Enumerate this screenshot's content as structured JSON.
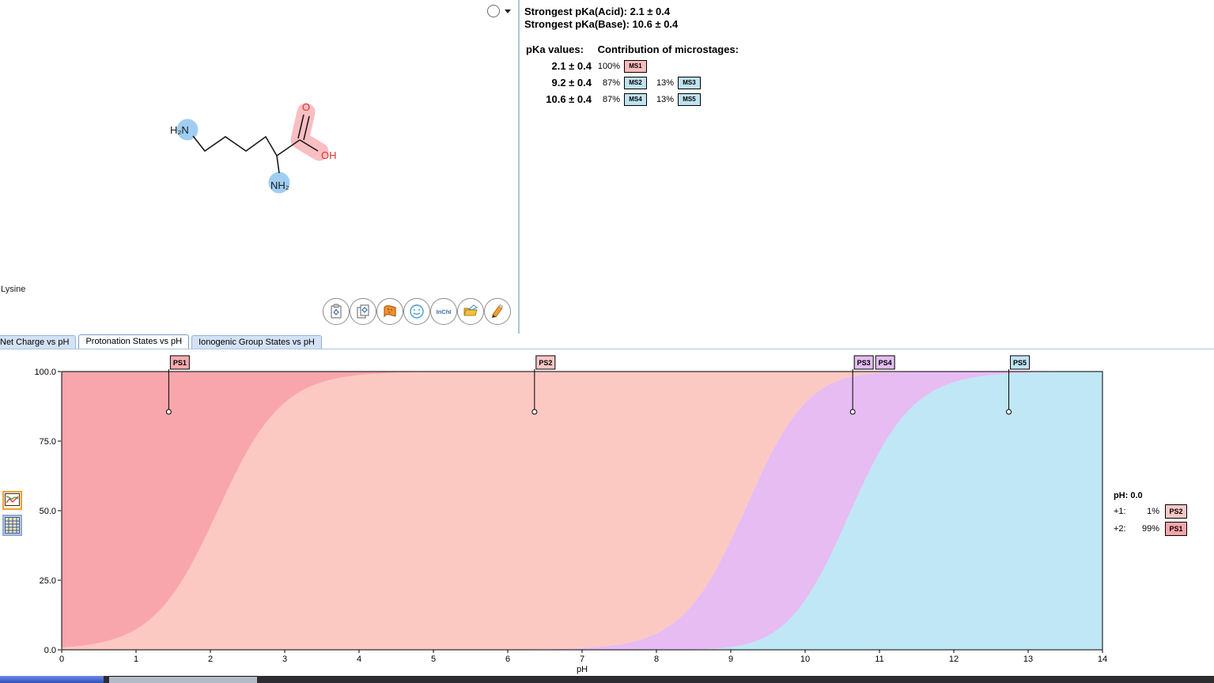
{
  "molecule": {
    "name": "Lysine",
    "labels": {
      "amine_terminal": "H₂N",
      "amine_alpha": "NH₂",
      "carbonyl_o": "O",
      "hydroxyl": "OH"
    },
    "highlight_colors": {
      "basic_site": "#9fcef2",
      "acidic_site": "#f9bec2"
    }
  },
  "toolbar": {
    "inchi_label": "InChI",
    "buttons": [
      "paste-structure",
      "copy-structure",
      "structure-library",
      "smiles-export",
      "inchi-export",
      "file-export",
      "edit-structure"
    ]
  },
  "pka_panel": {
    "strongest_acid_label": "Strongest pKa(Acid):",
    "strongest_acid_value": "2.1 ± 0.4",
    "strongest_base_label": "Strongest pKa(Base):",
    "strongest_base_value": "10.6 ± 0.4",
    "values_header": "pKa values:",
    "contribution_header": "Contribution of microstages:",
    "rows": [
      {
        "pka": "2.1 ± 0.4",
        "entries": [
          {
            "pct": "100%",
            "ms": "MS1",
            "color": "pink"
          }
        ]
      },
      {
        "pka": "9.2 ± 0.4",
        "entries": [
          {
            "pct": "87%",
            "ms": "MS2",
            "color": "blue"
          },
          {
            "pct": "13%",
            "ms": "MS3",
            "color": "blue"
          }
        ]
      },
      {
        "pka": "10.6 ± 0.4",
        "entries": [
          {
            "pct": "87%",
            "ms": "MS4",
            "color": "blue"
          },
          {
            "pct": "13%",
            "ms": "MS5",
            "color": "blue"
          }
        ]
      }
    ]
  },
  "tabs": [
    {
      "label": "Net Charge vs pH",
      "active": false
    },
    {
      "label": "Protonation States vs pH",
      "active": true
    },
    {
      "label": "Ionogenic Group States vs pH",
      "active": false
    }
  ],
  "chart_legend": {
    "title": "pH: 0.0",
    "rows": [
      {
        "charge": "+1:",
        "pct": "1%",
        "ps": "PS2",
        "color": "#fcc8c6"
      },
      {
        "charge": "+2:",
        "pct": "99%",
        "ps": "PS1",
        "color": "#f8a6ac"
      }
    ]
  },
  "chart_data": {
    "type": "area",
    "stacked": true,
    "title": "Protonation States vs pH",
    "xlabel": "pH",
    "ylabel": "%",
    "xlim": [
      0,
      14
    ],
    "ylim": [
      0,
      100
    ],
    "grid": false,
    "pkas": [
      2.1,
      9.2,
      10.6
    ],
    "x": [
      0,
      1,
      2,
      3,
      4,
      5,
      6,
      7,
      8,
      9,
      10,
      11,
      12,
      13,
      14
    ],
    "x_tick_labels": [
      "0",
      "1",
      "2",
      "3",
      "4",
      "5",
      "6",
      "7",
      "8",
      "9",
      "10",
      "11",
      "12",
      "13",
      "14"
    ],
    "y_ticks": [
      0,
      25,
      50,
      75,
      100
    ],
    "y_tick_labels": [
      "0.0",
      "25.0",
      "50.0",
      "75.0",
      "100.0"
    ],
    "series": [
      {
        "name": "PS1",
        "charge": "+2",
        "color": "#f8a6ac",
        "values": [
          99.2,
          92.6,
          55.7,
          11.2,
          1.2,
          0.1,
          0,
          0,
          0,
          0,
          0,
          0,
          0,
          0,
          0
        ]
      },
      {
        "name": "PS2",
        "charge": "+1",
        "color": "#fcc8c2",
        "values": [
          0.8,
          7.4,
          44.3,
          88.8,
          98.8,
          99.8,
          99.9,
          99.4,
          94.0,
          60.7,
          11.2,
          0.4,
          0,
          0,
          0
        ]
      },
      {
        "name": "PS3+PS4",
        "charge": "0",
        "color": "#e6bcf2",
        "values": [
          0,
          0,
          0,
          0,
          0,
          0.1,
          0.1,
          0.6,
          5.9,
          38.3,
          71.0,
          28.3,
          3.8,
          0.4,
          0
        ]
      },
      {
        "name": "PS5",
        "charge": "-1",
        "color": "#bfe7f5",
        "values": [
          0,
          0,
          0,
          0,
          0,
          0,
          0,
          0,
          0.1,
          1.0,
          17.8,
          71.2,
          96.2,
          99.6,
          100
        ]
      }
    ],
    "markers": [
      {
        "label": "PS1",
        "ph": 1.44,
        "color": "#f9adb0"
      },
      {
        "label": "PS2",
        "ph": 6.36,
        "color": "#fcc7c7"
      },
      {
        "label": "PS3",
        "ph": 10.64,
        "color": "#e3bdf0"
      },
      {
        "label": "PS4",
        "ph": null,
        "color": "#e3bdf0"
      },
      {
        "label": "PS5",
        "ph": 12.74,
        "color": "#bfe5f4"
      }
    ]
  }
}
